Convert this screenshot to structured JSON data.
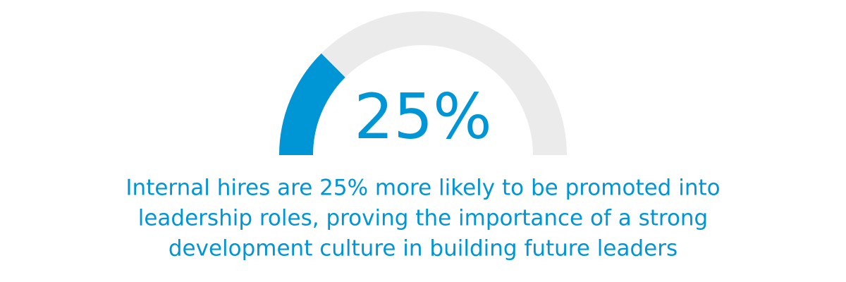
{
  "chart_data": {
    "type": "gauge",
    "values": [
      25
    ],
    "value_labels": [
      "25%"
    ],
    "ylim": [
      0,
      100
    ],
    "color": "#0095d5",
    "track_color": "#ebebeb",
    "caption": [
      "Internal hires are 25% more likely to be promoted into",
      "leadership roles, proving the importance of a strong",
      "development culture in building future leaders"
    ]
  }
}
